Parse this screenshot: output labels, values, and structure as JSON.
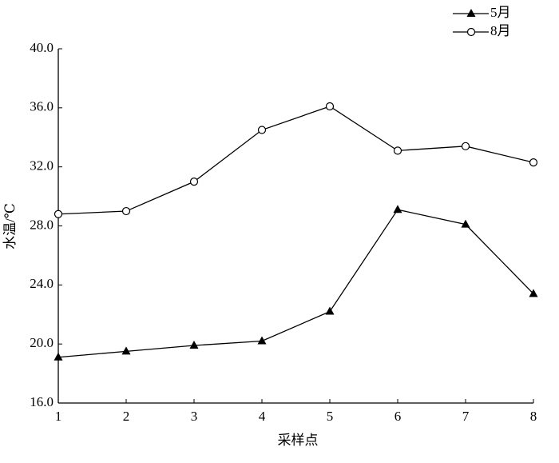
{
  "chart_data": {
    "type": "line",
    "x_label": "采样点",
    "y_label": "水温/℃",
    "x": [
      1,
      2,
      3,
      4,
      5,
      6,
      7,
      8
    ],
    "xlim": [
      1,
      8
    ],
    "xticks": [
      1,
      2,
      3,
      4,
      5,
      6,
      7,
      8
    ],
    "ylim": [
      16,
      40
    ],
    "yticks": [
      {
        "value": 16,
        "label": "16.0"
      },
      {
        "value": 20,
        "label": "20.0"
      },
      {
        "value": 24,
        "label": "24.0"
      },
      {
        "value": 28,
        "label": "28.0"
      },
      {
        "value": 32,
        "label": "32.0"
      },
      {
        "value": 36,
        "label": "36.0"
      },
      {
        "value": 40,
        "label": "40.0"
      }
    ],
    "legend": "top-right",
    "series": [
      {
        "name": "5月",
        "color": "#000000",
        "marker": "triangle",
        "values": [
          19.1,
          19.5,
          19.9,
          20.2,
          22.2,
          29.1,
          28.1,
          23.4
        ]
      },
      {
        "name": "8月",
        "color": "#000000",
        "marker": "circle",
        "values": [
          28.8,
          29.0,
          31.0,
          34.5,
          36.1,
          33.1,
          33.4,
          32.3
        ]
      }
    ]
  }
}
